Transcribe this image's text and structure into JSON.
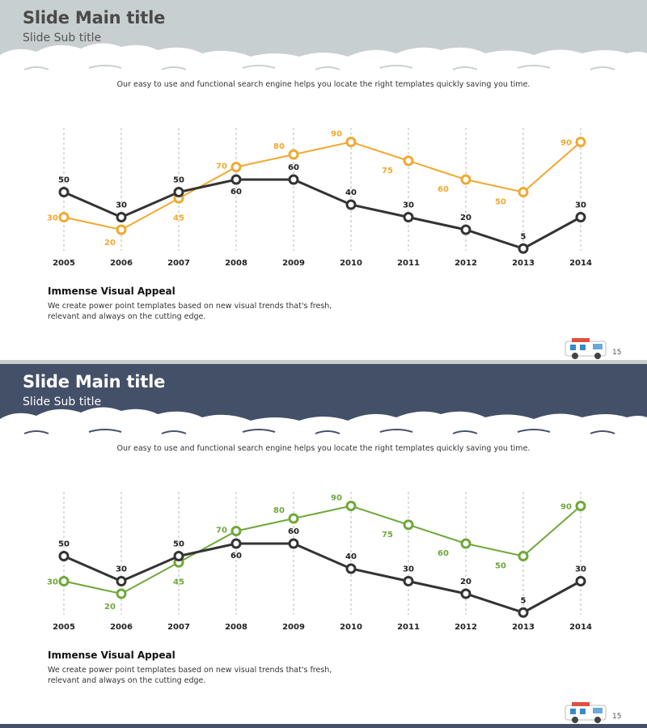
{
  "colors": {
    "gray_header": "#c8cfd0",
    "navy_header": "#445068",
    "orange": "#f0a930",
    "green": "#6ea83a",
    "dark": "#333333"
  },
  "slides": [
    {
      "title": "Slide Main title",
      "subtitle": "Slide Sub title",
      "intro": "Our easy to use and functional search engine helps you locate the right templates quickly saving you time.",
      "heading": "Immense Visual Appeal",
      "body_line1": "We create power point templates based on new visual trends that's  fresh,",
      "body_line2": "relevant and always on the cutting edge.",
      "page_number": "15",
      "header_color": "#c8cfd0",
      "title_color": "#4a4a4a",
      "subtitle_color": "#555555",
      "accent": "#f0a930"
    },
    {
      "title": "Slide Main title",
      "subtitle": "Slide Sub title",
      "intro": "Our easy to use and functional search engine helps you locate the right templates quickly saving you time.",
      "heading": "Immense Visual Appeal",
      "body_line1": "We create power point templates based on new visual trends that's  fresh,",
      "body_line2": "relevant and always on the cutting edge.",
      "page_number": "15",
      "header_color": "#445068",
      "title_color": "#ffffff",
      "subtitle_color": "#ffffff",
      "accent": "#6ea83a"
    }
  ],
  "chart_data": [
    {
      "type": "line",
      "categories": [
        "2005",
        "2006",
        "2007",
        "2008",
        "2009",
        "2010",
        "2011",
        "2012",
        "2013",
        "2014"
      ],
      "series": [
        {
          "name": "dark",
          "color": "#333333",
          "values": [
            50,
            30,
            50,
            60,
            60,
            40,
            30,
            20,
            5,
            30
          ]
        },
        {
          "name": "orange",
          "color": "#f0a930",
          "values": [
            30,
            20,
            45,
            70,
            80,
            90,
            75,
            60,
            50,
            90
          ]
        }
      ],
      "ylim": [
        0,
        100
      ],
      "grid": "vertical dashed"
    },
    {
      "type": "line",
      "categories": [
        "2005",
        "2006",
        "2007",
        "2008",
        "2009",
        "2010",
        "2011",
        "2012",
        "2013",
        "2014"
      ],
      "series": [
        {
          "name": "dark",
          "color": "#333333",
          "values": [
            50,
            30,
            50,
            60,
            60,
            40,
            30,
            20,
            5,
            30
          ]
        },
        {
          "name": "green",
          "color": "#6ea83a",
          "values": [
            30,
            20,
            45,
            70,
            80,
            90,
            75,
            60,
            50,
            90
          ]
        }
      ],
      "ylim": [
        0,
        100
      ],
      "grid": "vertical dashed"
    }
  ]
}
